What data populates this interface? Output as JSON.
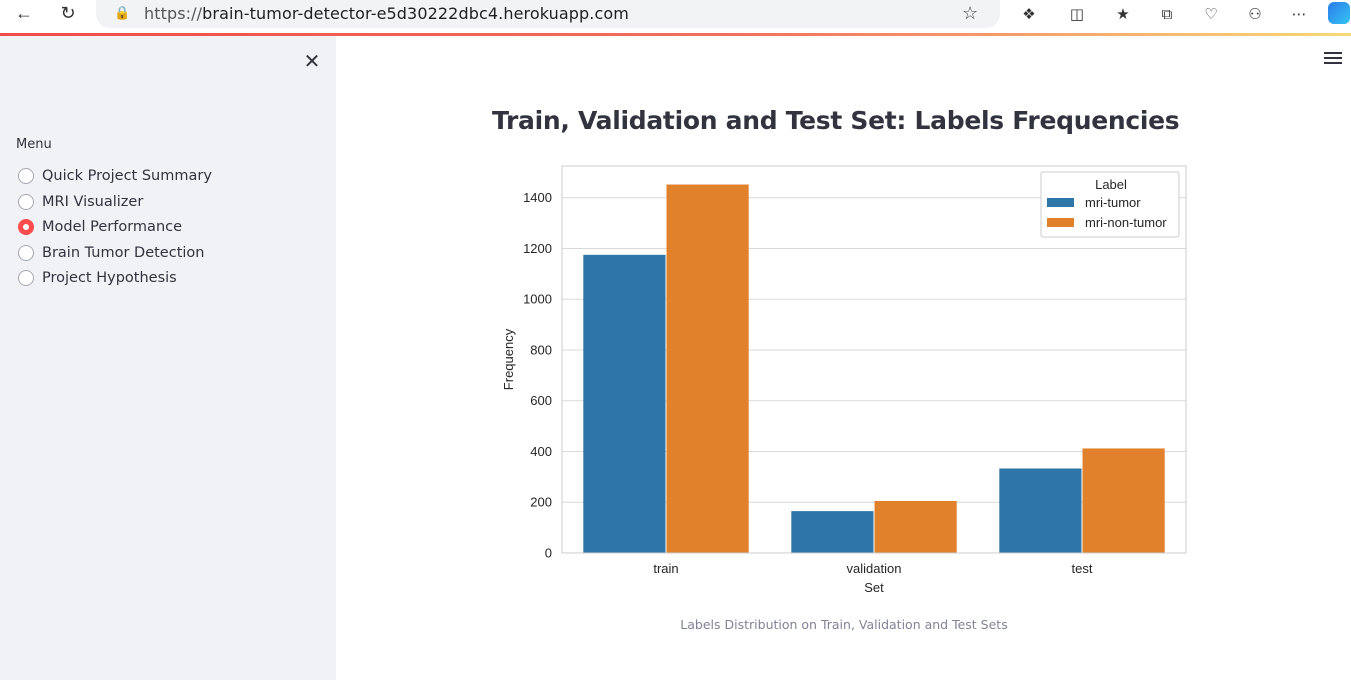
{
  "browser": {
    "url_proto": "https://",
    "url_host": "brain-tumor-detector-e5d30222dbc4.herokuapp.com"
  },
  "sidebar": {
    "menu_label": "Menu",
    "items": [
      {
        "label": "Quick Project Summary",
        "selected": false
      },
      {
        "label": "MRI Visualizer",
        "selected": false
      },
      {
        "label": "Model Performance",
        "selected": true
      },
      {
        "label": "Brain Tumor Detection",
        "selected": false
      },
      {
        "label": "Project Hypothesis",
        "selected": false
      }
    ]
  },
  "main": {
    "title": "Train, Validation and Test Set: Labels Frequencies",
    "caption": "Labels Distribution on Train, Validation and Test Sets"
  },
  "colors": {
    "accent": "#ff4b4b",
    "series_tumor": "#2e75a8",
    "series_non_tumor": "#e1812c"
  },
  "chart_data": {
    "type": "bar",
    "categories": [
      "train",
      "validation",
      "test"
    ],
    "series": [
      {
        "name": "mri-tumor",
        "values": [
          1175,
          165,
          333
        ]
      },
      {
        "name": "mri-non-tumor",
        "values": [
          1452,
          205,
          412
        ]
      }
    ],
    "xlabel": "Set",
    "ylabel": "Frequency",
    "ylim": [
      0,
      1525
    ],
    "yticks": [
      0,
      200,
      400,
      600,
      800,
      1000,
      1200,
      1400
    ],
    "legend_title": "Label",
    "legend_position": "top-right",
    "grid": true
  }
}
